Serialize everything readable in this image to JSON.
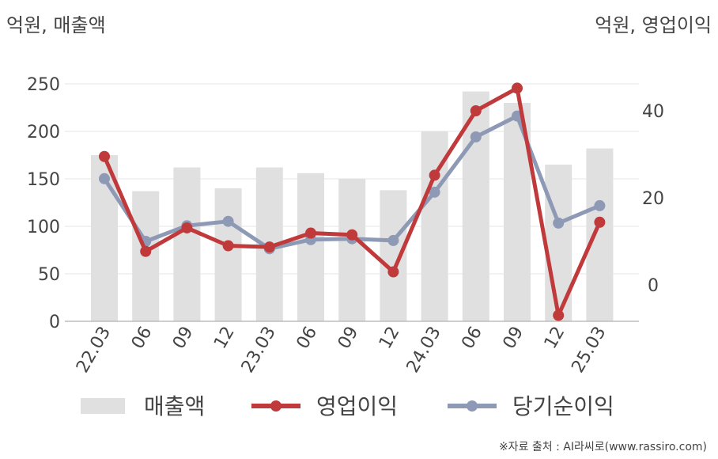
{
  "unit_left": "억원, 매출액",
  "unit_right": "억원, 영업이익",
  "source": "※자료 출처 : AI라씨로(www.rassiro.com)",
  "chart_data": {
    "type": "bar",
    "categories": [
      "22.03",
      "06",
      "09",
      "12",
      "23.03",
      "06",
      "09",
      "12",
      "24.03",
      "06",
      "09",
      "12",
      "25.03"
    ],
    "y_left": {
      "label": "억원, 매출액",
      "ylim": [
        0,
        250
      ],
      "ticks": [
        0,
        50,
        100,
        150,
        200,
        250
      ]
    },
    "y_right": {
      "label": "억원, 영업이익",
      "ticks": [
        0,
        20,
        40
      ]
    },
    "grid": true,
    "legend_position": "bottom",
    "series": [
      {
        "name": "매출액",
        "type": "bar",
        "axis": "left",
        "color": "#e0e0e0",
        "values": [
          175,
          137,
          162,
          140,
          162,
          156,
          150,
          138,
          200,
          242,
          230,
          165,
          182
        ]
      },
      {
        "name": "영업이익",
        "type": "line",
        "axis": "right",
        "color": "#c0393b",
        "values": [
          29.5,
          7.7,
          13.1,
          9.0,
          8.7,
          11.9,
          11.5,
          3.0,
          25.2,
          40.0,
          45.2,
          -7.0,
          14.4
        ]
      },
      {
        "name": "당기순이익",
        "type": "line",
        "axis": "right",
        "color": "#8e9ab5",
        "values": [
          24.4,
          10.0,
          13.6,
          14.6,
          8.3,
          10.4,
          10.6,
          10.2,
          21.3,
          34.0,
          38.8,
          14.2,
          18.2
        ]
      }
    ]
  }
}
